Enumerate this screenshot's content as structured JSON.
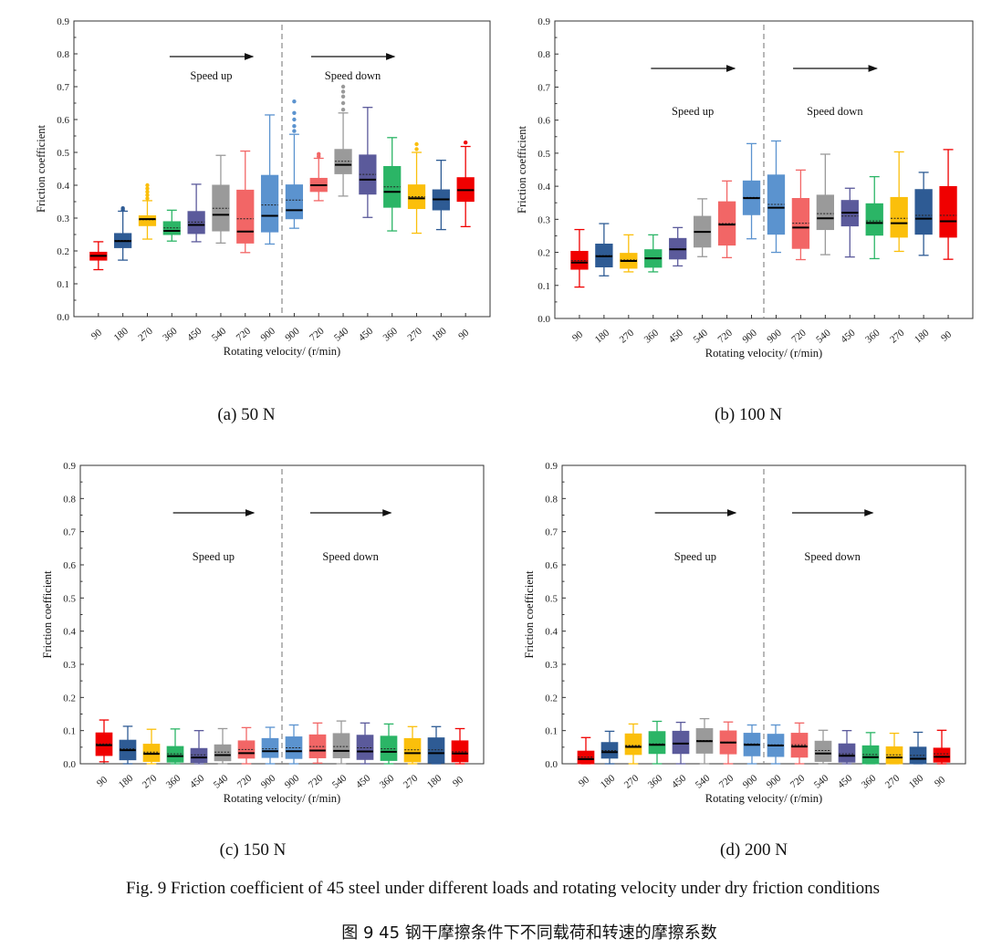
{
  "figure_caption_en": "Fig. 9 Friction coefficient of 45 steel under different loads and rotating velocity under dry friction conditions",
  "figure_caption_zh": "图 9 45 钢干摩擦条件下不同载荷和转速的摩擦系数",
  "colors": [
    "#f00000",
    "#2e5b94",
    "#fbbf0b",
    "#2bb566",
    "#5b5a9b",
    "#9a9a9a",
    "#f26666",
    "#5b93cf",
    "#5b93cf",
    "#f26666",
    "#9a9a9a",
    "#5b5a9b",
    "#2bb566",
    "#fbbf0b",
    "#2e5b94",
    "#f00000"
  ],
  "chart_data": [
    {
      "type": "box",
      "subtitle": "(a) 50 N",
      "xlabel": "Rotating velocity/ (r/min)",
      "ylabel": "Friction coefficient",
      "ylim": [
        0,
        0.9
      ],
      "yticks": [
        "0.0",
        "0.1",
        "0.2",
        "0.3",
        "0.4",
        "0.5",
        "0.6",
        "0.7",
        "0.8",
        "0.9"
      ],
      "categories": [
        "90",
        "180",
        "270",
        "360",
        "450",
        "540",
        "720",
        "900",
        "900",
        "720",
        "540",
        "450",
        "360",
        "270",
        "180",
        "90"
      ],
      "annotations": [
        "Speed up",
        "Speed down"
      ],
      "boxes": [
        {
          "min": 0.143,
          "q1": 0.172,
          "median": 0.185,
          "q3": 0.196,
          "max": 0.228,
          "mean": 0.185
        },
        {
          "min": 0.172,
          "q1": 0.21,
          "median": 0.23,
          "q3": 0.253,
          "max": 0.321,
          "mean": 0.232,
          "outliers": [
            0.325,
            0.33
          ]
        },
        {
          "min": 0.236,
          "q1": 0.277,
          "median": 0.297,
          "q3": 0.307,
          "max": 0.353,
          "mean": 0.295,
          "outliers": [
            0.36,
            0.37,
            0.38,
            0.39,
            0.4
          ]
        },
        {
          "min": 0.23,
          "q1": 0.25,
          "median": 0.261,
          "q3": 0.289,
          "max": 0.324,
          "mean": 0.27
        },
        {
          "min": 0.228,
          "q1": 0.253,
          "median": 0.279,
          "q3": 0.32,
          "max": 0.403,
          "mean": 0.288
        },
        {
          "min": 0.224,
          "q1": 0.261,
          "median": 0.31,
          "q3": 0.4,
          "max": 0.491,
          "mean": 0.33
        },
        {
          "min": 0.195,
          "q1": 0.224,
          "median": 0.259,
          "q3": 0.385,
          "max": 0.504,
          "mean": 0.298
        },
        {
          "min": 0.221,
          "q1": 0.258,
          "median": 0.307,
          "q3": 0.43,
          "max": 0.614,
          "mean": 0.34
        },
        {
          "min": 0.269,
          "q1": 0.298,
          "median": 0.324,
          "q3": 0.401,
          "max": 0.555,
          "mean": 0.355,
          "outliers": [
            0.565,
            0.58,
            0.6,
            0.62,
            0.655
          ]
        },
        {
          "min": 0.353,
          "q1": 0.381,
          "median": 0.4,
          "q3": 0.421,
          "max": 0.482,
          "mean": 0.4,
          "outliers": [
            0.488,
            0.495
          ]
        },
        {
          "min": 0.367,
          "q1": 0.435,
          "median": 0.462,
          "q3": 0.509,
          "max": 0.62,
          "mean": 0.473,
          "outliers": [
            0.63,
            0.65,
            0.67,
            0.685,
            0.7
          ]
        },
        {
          "min": 0.302,
          "q1": 0.373,
          "median": 0.417,
          "q3": 0.492,
          "max": 0.637,
          "mean": 0.433
        },
        {
          "min": 0.261,
          "q1": 0.333,
          "median": 0.38,
          "q3": 0.457,
          "max": 0.545,
          "mean": 0.395
        },
        {
          "min": 0.254,
          "q1": 0.329,
          "median": 0.36,
          "q3": 0.401,
          "max": 0.5,
          "mean": 0.365,
          "outliers": [
            0.51,
            0.525
          ]
        },
        {
          "min": 0.265,
          "q1": 0.325,
          "median": 0.357,
          "q3": 0.386,
          "max": 0.476,
          "mean": 0.358
        },
        {
          "min": 0.274,
          "q1": 0.351,
          "median": 0.385,
          "q3": 0.423,
          "max": 0.518,
          "mean": 0.385,
          "outliers": [
            0.53
          ]
        }
      ]
    },
    {
      "type": "box",
      "subtitle": "(b) 100 N",
      "xlabel": "Rotating velocity/ (r/min)",
      "ylabel": "Friction coefficient",
      "ylim": [
        0,
        0.9
      ],
      "yticks": [
        "0.0",
        "0.1",
        "0.2",
        "0.3",
        "0.4",
        "0.5",
        "0.6",
        "0.7",
        "0.8",
        "0.9"
      ],
      "categories": [
        "90",
        "180",
        "270",
        "360",
        "450",
        "540",
        "720",
        "900",
        "900",
        "720",
        "540",
        "450",
        "360",
        "270",
        "180",
        "90"
      ],
      "annotations": [
        "Speed up",
        "Speed down"
      ],
      "boxes": [
        {
          "min": 0.095,
          "q1": 0.149,
          "median": 0.169,
          "q3": 0.203,
          "max": 0.269,
          "mean": 0.175
        },
        {
          "min": 0.129,
          "q1": 0.156,
          "median": 0.188,
          "q3": 0.225,
          "max": 0.287,
          "mean": 0.19
        },
        {
          "min": 0.141,
          "q1": 0.152,
          "median": 0.174,
          "q3": 0.197,
          "max": 0.253,
          "mean": 0.177
        },
        {
          "min": 0.141,
          "q1": 0.155,
          "median": 0.182,
          "q3": 0.208,
          "max": 0.253,
          "mean": 0.183
        },
        {
          "min": 0.159,
          "q1": 0.18,
          "median": 0.209,
          "q3": 0.242,
          "max": 0.275,
          "mean": 0.21
        },
        {
          "min": 0.187,
          "q1": 0.216,
          "median": 0.262,
          "q3": 0.309,
          "max": 0.362,
          "mean": 0.262
        },
        {
          "min": 0.184,
          "q1": 0.222,
          "median": 0.284,
          "q3": 0.353,
          "max": 0.416,
          "mean": 0.287
        },
        {
          "min": 0.241,
          "q1": 0.314,
          "median": 0.364,
          "q3": 0.416,
          "max": 0.529,
          "mean": 0.366
        },
        {
          "min": 0.2,
          "q1": 0.255,
          "median": 0.335,
          "q3": 0.434,
          "max": 0.537,
          "mean": 0.345
        },
        {
          "min": 0.178,
          "q1": 0.212,
          "median": 0.275,
          "q3": 0.363,
          "max": 0.449,
          "mean": 0.288
        },
        {
          "min": 0.193,
          "q1": 0.269,
          "median": 0.303,
          "q3": 0.373,
          "max": 0.497,
          "mean": 0.317
        },
        {
          "min": 0.186,
          "q1": 0.28,
          "median": 0.32,
          "q3": 0.357,
          "max": 0.394,
          "mean": 0.31
        },
        {
          "min": 0.181,
          "q1": 0.252,
          "median": 0.289,
          "q3": 0.347,
          "max": 0.429,
          "mean": 0.295
        },
        {
          "min": 0.203,
          "q1": 0.246,
          "median": 0.288,
          "q3": 0.366,
          "max": 0.504,
          "mean": 0.303
        },
        {
          "min": 0.191,
          "q1": 0.255,
          "median": 0.302,
          "q3": 0.39,
          "max": 0.442,
          "mean": 0.312
        },
        {
          "min": 0.179,
          "q1": 0.246,
          "median": 0.294,
          "q3": 0.399,
          "max": 0.511,
          "mean": 0.312
        }
      ]
    },
    {
      "type": "box",
      "subtitle": "(c) 150 N",
      "xlabel": "Rotating velocity/ (r/min)",
      "ylabel": "Friction coefficient",
      "ylim": [
        0,
        0.9
      ],
      "yticks": [
        "0.0",
        "0.1",
        "0.2",
        "0.3",
        "0.4",
        "0.5",
        "0.6",
        "0.7",
        "0.8",
        "0.9"
      ],
      "categories": [
        "90",
        "180",
        "270",
        "360",
        "450",
        "540",
        "720",
        "900",
        "900",
        "720",
        "540",
        "450",
        "360",
        "270",
        "180",
        "90"
      ],
      "annotations": [
        "Speed up",
        "Speed down"
      ],
      "boxes": [
        {
          "min": 0.006,
          "q1": 0.025,
          "median": 0.056,
          "q3": 0.093,
          "max": 0.132,
          "mean": 0.06
        },
        {
          "min": 0.0,
          "q1": 0.012,
          "median": 0.041,
          "q3": 0.071,
          "max": 0.113,
          "mean": 0.045
        },
        {
          "min": 0.0,
          "q1": 0.007,
          "median": 0.03,
          "q3": 0.059,
          "max": 0.104,
          "mean": 0.035
        },
        {
          "min": 0.0,
          "q1": 0.005,
          "median": 0.023,
          "q3": 0.052,
          "max": 0.105,
          "mean": 0.03
        },
        {
          "min": 0.0,
          "q1": 0.004,
          "median": 0.019,
          "q3": 0.046,
          "max": 0.1,
          "mean": 0.027
        },
        {
          "min": 0.0,
          "q1": 0.009,
          "median": 0.026,
          "q3": 0.057,
          "max": 0.106,
          "mean": 0.035
        },
        {
          "min": 0.0,
          "q1": 0.017,
          "median": 0.032,
          "q3": 0.069,
          "max": 0.109,
          "mean": 0.043
        },
        {
          "min": 0.0,
          "q1": 0.019,
          "median": 0.038,
          "q3": 0.076,
          "max": 0.11,
          "mean": 0.045
        },
        {
          "min": 0.0,
          "q1": 0.016,
          "median": 0.038,
          "q3": 0.081,
          "max": 0.117,
          "mean": 0.048
        },
        {
          "min": 0.002,
          "q1": 0.018,
          "median": 0.04,
          "q3": 0.087,
          "max": 0.123,
          "mean": 0.052
        },
        {
          "min": 0.0,
          "q1": 0.018,
          "median": 0.039,
          "q3": 0.091,
          "max": 0.129,
          "mean": 0.052
        },
        {
          "min": 0.0,
          "q1": 0.013,
          "median": 0.037,
          "q3": 0.086,
          "max": 0.123,
          "mean": 0.048
        },
        {
          "min": 0.0,
          "q1": 0.01,
          "median": 0.036,
          "q3": 0.083,
          "max": 0.12,
          "mean": 0.045
        },
        {
          "min": 0.0,
          "q1": 0.006,
          "median": 0.032,
          "q3": 0.076,
          "max": 0.112,
          "mean": 0.042
        },
        {
          "min": 0.0,
          "q1": 0.002,
          "median": 0.032,
          "q3": 0.078,
          "max": 0.112,
          "mean": 0.042
        },
        {
          "min": 0.0,
          "q1": 0.006,
          "median": 0.031,
          "q3": 0.069,
          "max": 0.106,
          "mean": 0.036
        }
      ]
    },
    {
      "type": "box",
      "subtitle": "(d) 200 N",
      "xlabel": "Rotating velocity/ (r/min)",
      "ylabel": "Friction coefficient",
      "ylim": [
        0,
        0.9
      ],
      "yticks": [
        "0.0",
        "0.1",
        "0.2",
        "0.3",
        "0.4",
        "0.5",
        "0.6",
        "0.7",
        "0.8",
        "0.9"
      ],
      "categories": [
        "90",
        "180",
        "270",
        "360",
        "450",
        "540",
        "720",
        "900",
        "900",
        "720",
        "540",
        "450",
        "360",
        "270",
        "180",
        "90"
      ],
      "annotations": [
        "Speed up",
        "Speed down"
      ],
      "boxes": [
        {
          "min": 0.0,
          "q1": 0.0,
          "median": 0.014,
          "q3": 0.038,
          "max": 0.079,
          "mean": 0.02
        },
        {
          "min": 0.0,
          "q1": 0.017,
          "median": 0.035,
          "q3": 0.064,
          "max": 0.098,
          "mean": 0.04
        },
        {
          "min": 0.0,
          "q1": 0.028,
          "median": 0.051,
          "q3": 0.09,
          "max": 0.12,
          "mean": 0.055
        },
        {
          "min": 0.0,
          "q1": 0.031,
          "median": 0.057,
          "q3": 0.097,
          "max": 0.128,
          "mean": 0.06
        },
        {
          "min": 0.0,
          "q1": 0.031,
          "median": 0.061,
          "q3": 0.098,
          "max": 0.125,
          "mean": 0.062
        },
        {
          "min": 0.0,
          "q1": 0.032,
          "median": 0.068,
          "q3": 0.106,
          "max": 0.136,
          "mean": 0.07
        },
        {
          "min": 0.0,
          "q1": 0.03,
          "median": 0.064,
          "q3": 0.099,
          "max": 0.126,
          "mean": 0.065
        },
        {
          "min": 0.0,
          "q1": 0.024,
          "median": 0.057,
          "q3": 0.092,
          "max": 0.117,
          "mean": 0.06
        },
        {
          "min": 0.0,
          "q1": 0.022,
          "median": 0.055,
          "q3": 0.089,
          "max": 0.117,
          "mean": 0.057
        },
        {
          "min": 0.0,
          "q1": 0.02,
          "median": 0.052,
          "q3": 0.092,
          "max": 0.123,
          "mean": 0.057
        },
        {
          "min": 0.0,
          "q1": 0.007,
          "median": 0.031,
          "q3": 0.068,
          "max": 0.101,
          "mean": 0.04
        },
        {
          "min": 0.0,
          "q1": 0.005,
          "median": 0.024,
          "q3": 0.06,
          "max": 0.1,
          "mean": 0.03
        },
        {
          "min": 0.0,
          "q1": 0.0,
          "median": 0.02,
          "q3": 0.054,
          "max": 0.094,
          "mean": 0.028
        },
        {
          "min": 0.0,
          "q1": 0.0,
          "median": 0.019,
          "q3": 0.051,
          "max": 0.092,
          "mean": 0.027
        },
        {
          "min": 0.0,
          "q1": 0.0,
          "median": 0.015,
          "q3": 0.05,
          "max": 0.095,
          "mean": 0.025
        },
        {
          "min": 0.0,
          "q1": 0.005,
          "median": 0.021,
          "q3": 0.047,
          "max": 0.101,
          "mean": 0.03
        }
      ]
    }
  ]
}
